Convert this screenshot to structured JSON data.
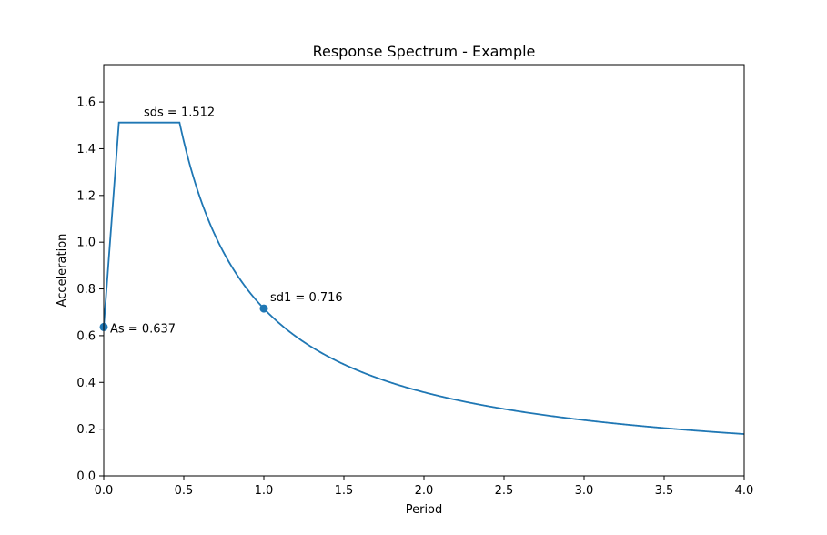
{
  "chart_data": {
    "type": "line",
    "title": "Response Spectrum - Example",
    "xlabel": "Period",
    "ylabel": "Acceleration",
    "xlim": [
      0,
      4.0
    ],
    "ylim": [
      0,
      1.76
    ],
    "xticks": [
      {
        "value": 0.0,
        "label": "0.0"
      },
      {
        "value": 0.5,
        "label": "0.5"
      },
      {
        "value": 1.0,
        "label": "1.0"
      },
      {
        "value": 1.5,
        "label": "1.5"
      },
      {
        "value": 2.0,
        "label": "2.0"
      },
      {
        "value": 2.5,
        "label": "2.5"
      },
      {
        "value": 3.0,
        "label": "3.0"
      },
      {
        "value": 3.5,
        "label": "3.5"
      },
      {
        "value": 4.0,
        "label": "4.0"
      }
    ],
    "yticks": [
      {
        "value": 0.0,
        "label": "0.0"
      },
      {
        "value": 0.2,
        "label": "0.2"
      },
      {
        "value": 0.4,
        "label": "0.4"
      },
      {
        "value": 0.6,
        "label": "0.6"
      },
      {
        "value": 0.8,
        "label": "0.8"
      },
      {
        "value": 1.0,
        "label": "1.0"
      },
      {
        "value": 1.2,
        "label": "1.2"
      },
      {
        "value": 1.4,
        "label": "1.4"
      },
      {
        "value": 1.6,
        "label": "1.6"
      }
    ],
    "grid": false,
    "series_color": "#1f77b4",
    "spectrum": {
      "As": 0.637,
      "sds": 1.512,
      "sd1": 0.716
    },
    "points": [
      {
        "x": 0.0,
        "y": 0.637
      },
      {
        "x": 1.0,
        "y": 0.716
      }
    ],
    "annotations": [
      {
        "text": "As = 0.637",
        "x": 0.0,
        "y": 0.637
      },
      {
        "text": "sds = 1.512",
        "x": 0.25,
        "y": 1.512
      },
      {
        "text": "sd1 = 0.716",
        "x": 1.0,
        "y": 0.716
      }
    ]
  }
}
